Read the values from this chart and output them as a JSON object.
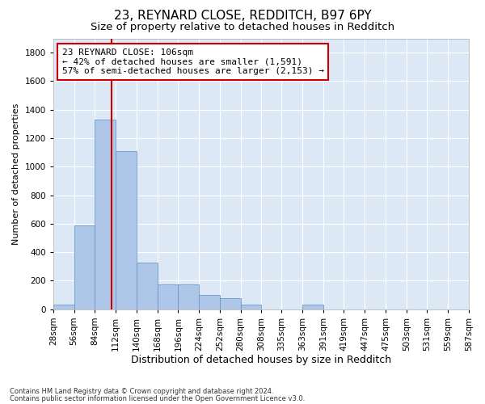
{
  "title": "23, REYNARD CLOSE, REDDITCH, B97 6PY",
  "subtitle": "Size of property relative to detached houses in Redditch",
  "xlabel": "Distribution of detached houses by size in Redditch",
  "ylabel": "Number of detached properties",
  "footnote1": "Contains HM Land Registry data © Crown copyright and database right 2024.",
  "footnote2": "Contains public sector information licensed under the Open Government Licence v3.0.",
  "property_label": "23 REYNARD CLOSE: 106sqm",
  "annotation_line1": "← 42% of detached houses are smaller (1,591)",
  "annotation_line2": "57% of semi-detached houses are larger (2,153) →",
  "bin_labels": [
    "28sqm",
    "56sqm",
    "84sqm",
    "112sqm",
    "140sqm",
    "168sqm",
    "196sqm",
    "224sqm",
    "252sqm",
    "280sqm",
    "308sqm",
    "335sqm",
    "363sqm",
    "391sqm",
    "419sqm",
    "447sqm",
    "475sqm",
    "503sqm",
    "531sqm",
    "559sqm",
    "587sqm"
  ],
  "bin_lefts": [
    28,
    56,
    84,
    112,
    140,
    168,
    196,
    224,
    252,
    280,
    308,
    335,
    363,
    391,
    419,
    447,
    475,
    503,
    531,
    559
  ],
  "bin_width": 28,
  "bar_values": [
    30,
    590,
    1330,
    1110,
    330,
    175,
    175,
    100,
    80,
    30,
    0,
    0,
    30,
    0,
    0,
    0,
    0,
    0,
    0,
    0
  ],
  "bar_color": "#aec6e8",
  "bar_edge_color": "#5a8fc2",
  "red_line_x": 106,
  "xlim_left": 28,
  "xlim_right": 587,
  "ylim": [
    0,
    1900
  ],
  "yticks": [
    0,
    200,
    400,
    600,
    800,
    1000,
    1200,
    1400,
    1600,
    1800
  ],
  "bg_color": "#dce8f5",
  "annotation_box_facecolor": "#ffffff",
  "annotation_box_edgecolor": "#cc0000",
  "red_line_color": "#cc0000",
  "title_fontsize": 11,
  "subtitle_fontsize": 9.5,
  "xlabel_fontsize": 9,
  "ylabel_fontsize": 8,
  "tick_fontsize": 7.5,
  "annotation_fontsize": 8
}
